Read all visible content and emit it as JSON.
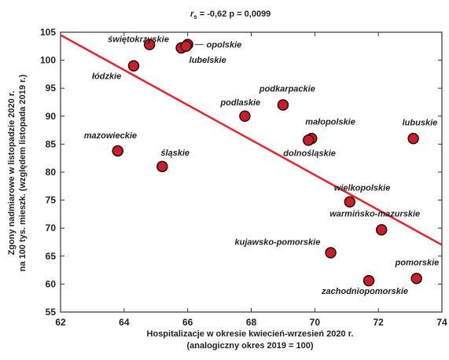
{
  "chart_data": {
    "type": "scatter",
    "title": "",
    "annotation": {
      "r_symbol": "r",
      "r_sub": "s",
      "text": " = -0,62 p = 0,0099"
    },
    "xlabel": [
      "Hospitalizacje w okresie kwiecień-wrzesień 2020 r.",
      "(analogiczny okres 2019 = 100)"
    ],
    "ylabel": [
      "Zgony nadmiarowe w listopadzie 2020 r.",
      "na 100 tys. mieszk. (względem listopada 2019 r.)"
    ],
    "xlim": [
      62,
      74
    ],
    "ylim": [
      55,
      105
    ],
    "xticks": [
      62,
      64,
      66,
      68,
      70,
      72,
      74
    ],
    "yticks": [
      55,
      60,
      65,
      70,
      75,
      80,
      85,
      90,
      95,
      100,
      105
    ],
    "grid": false,
    "colors": {
      "point_fill": "#c8202a",
      "point_stroke": "#2a0a0a",
      "trend": "#e8242b"
    },
    "trendline": {
      "x": [
        62,
        74
      ],
      "y": [
        104.5,
        67
      ]
    },
    "points": [
      {
        "label": "świętokrzyskie",
        "x": 64.8,
        "y": 102.8
      },
      {
        "label": "",
        "x": 65.8,
        "y": 102.2
      },
      {
        "label": "opolskie",
        "x": 66.0,
        "y": 102.8
      },
      {
        "label": "lubelskie",
        "x": 65.95,
        "y": 102.5
      },
      {
        "label": "łódzkie",
        "x": 64.3,
        "y": 99.0
      },
      {
        "label": "podkarpackie",
        "x": 69.0,
        "y": 92.0
      },
      {
        "label": "podlaskie",
        "x": 67.8,
        "y": 90.0
      },
      {
        "label": "małopolskie",
        "x": 69.9,
        "y": 86.0
      },
      {
        "label": "dolnośląskie",
        "x": 69.8,
        "y": 85.7
      },
      {
        "label": "lubuskie",
        "x": 73.1,
        "y": 86.0
      },
      {
        "label": "mazowieckie",
        "x": 63.8,
        "y": 83.8
      },
      {
        "label": "śląskie",
        "x": 65.2,
        "y": 81.0
      },
      {
        "label": "wielkopolskie",
        "x": 71.1,
        "y": 74.7
      },
      {
        "label": "warmińsko-mazurskie",
        "x": 72.1,
        "y": 69.7
      },
      {
        "label": "kujawsko-pomorskie",
        "x": 70.5,
        "y": 65.6
      },
      {
        "label": "pomorskie",
        "x": 73.2,
        "y": 61.0
      },
      {
        "label": "zachodniopomorskie",
        "x": 71.7,
        "y": 60.6
      }
    ]
  }
}
